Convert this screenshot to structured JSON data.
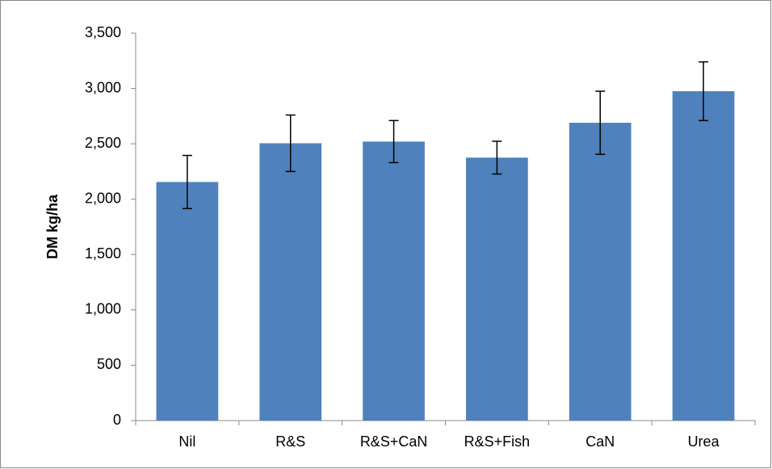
{
  "chart_data": {
    "type": "bar",
    "y_label": "DM kg/ha",
    "categories": [
      "Nil",
      "R&S",
      "R&S+CaN",
      "R&S+Fish",
      "CaN",
      "Urea"
    ],
    "values": [
      2155,
      2505,
      2520,
      2375,
      2690,
      2975
    ],
    "errors": [
      240,
      255,
      190,
      148,
      285,
      265
    ],
    "color": "#4f81bd",
    "ylim": [
      0,
      3500
    ],
    "yticks": [
      0,
      500,
      {
        "value": 1000,
        "label": "1,000"
      },
      {
        "value": 1500,
        "label": "1,500"
      },
      {
        "value": 2000,
        "label": "2,000"
      },
      {
        "value": 2500,
        "label": "2,500"
      },
      {
        "value": 3000,
        "label": "3,000"
      },
      {
        "value": 3500,
        "label": "3,500"
      }
    ],
    "grid": false
  }
}
